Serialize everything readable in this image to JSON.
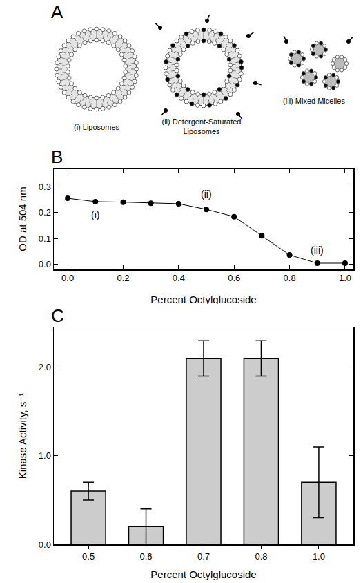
{
  "panel_labels": [
    "A",
    "B",
    "C"
  ],
  "diagram": {
    "items": [
      {
        "label": "(i) Liposomes"
      },
      {
        "label": "(ii) Detergent-Saturated Liposomes"
      },
      {
        "label": "(iii) Mixed Micelles"
      }
    ]
  },
  "chart_data": [
    {
      "type": "line",
      "x_label": "Percent Octylglucoside",
      "y_label": "OD at 504 nm",
      "x": [
        0.0,
        0.1,
        0.2,
        0.3,
        0.4,
        0.5,
        0.6,
        0.7,
        0.8,
        0.9,
        1.0
      ],
      "values": [
        0.255,
        0.242,
        0.24,
        0.236,
        0.234,
        0.212,
        0.184,
        0.11,
        0.036,
        0.004,
        0.004
      ],
      "color": "#000000",
      "marker": "circle",
      "line_style": "solid",
      "xlim": [
        -0.05,
        1.03
      ],
      "xticks": [
        {
          "value": 0.0,
          "label": "0.0"
        },
        0.2,
        0.4,
        0.6,
        0.8,
        {
          "value": 1.0,
          "label": "1.0"
        }
      ],
      "ylim": [
        -0.02,
        0.37
      ],
      "yticks": [
        {
          "value": 0.0,
          "label": "0.0"
        },
        0.1,
        0.2,
        0.3
      ],
      "grid": false,
      "annotations": [
        {
          "text": "(i)",
          "x": 0.1,
          "y": 0.19
        },
        {
          "text": "(ii)",
          "x": 0.5,
          "y": 0.27
        },
        {
          "text": "(iii)",
          "x": 0.9,
          "y": 0.055
        }
      ]
    },
    {
      "type": "bar",
      "x_label": "Percent Octylglucoside",
      "y_label": "Kinase Activity, s⁻¹",
      "categories": [
        "0.5",
        "0.6",
        "0.7",
        "0.8",
        "1.0"
      ],
      "values": [
        0.6,
        0.2,
        2.1,
        2.1,
        0.7
      ],
      "errors": [
        0.1,
        0.2,
        0.2,
        0.2,
        0.4
      ],
      "color": "#cccccc",
      "ylim": [
        0,
        2.45
      ],
      "yticks": [
        {
          "value": 0,
          "label": "0.0"
        },
        {
          "value": 1,
          "label": "1.0"
        },
        {
          "value": 2,
          "label": "2.0"
        }
      ],
      "grid": false
    }
  ]
}
